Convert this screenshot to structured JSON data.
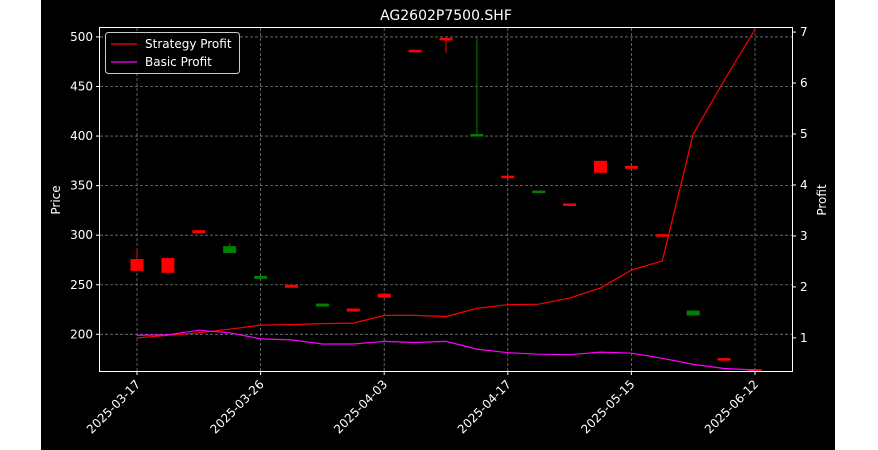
{
  "chart_data": {
    "type": "candlestick+line",
    "title": "AG2602P7500.SHF",
    "ylabel_left": "Price",
    "ylabel_right": "Profit",
    "ylim_left": [
      163,
      509
    ],
    "ylim_right": [
      0.35,
      7.08
    ],
    "yticks_left": [
      200,
      250,
      300,
      350,
      400,
      450,
      500
    ],
    "yticks_right": [
      1,
      2,
      3,
      4,
      5,
      6,
      7
    ],
    "xtick_labels": [
      "2025-03-17",
      "2025-03-26",
      "2025-04-03",
      "2025-04-17",
      "2025-05-15",
      "2025-06-12"
    ],
    "xtick_index": [
      0,
      4,
      8,
      12,
      16,
      20
    ],
    "grid": true,
    "legend_position": "upper-left",
    "colors": {
      "background": "#000000",
      "axes": "#ffffff",
      "grid": "#777777",
      "up": "#008000",
      "down": "#ff0000",
      "strategy": "#ff0000",
      "basic": "#ff00ff"
    },
    "candles": [
      {
        "open": 276,
        "close": 264,
        "high": 286,
        "low": 264
      },
      {
        "open": 277,
        "close": 262,
        "high": 278,
        "low": 262
      },
      {
        "open": 305,
        "close": 302,
        "high": 305,
        "low": 302
      },
      {
        "open": 282,
        "close": 289,
        "high": 292,
        "low": 282
      },
      {
        "open": 256,
        "close": 259,
        "high": 259,
        "low": 256
      },
      {
        "open": 250,
        "close": 247,
        "high": 250,
        "low": 247
      },
      {
        "open": 228,
        "close": 231,
        "high": 231,
        "low": 228
      },
      {
        "open": 226,
        "close": 223,
        "high": 226,
        "low": 223
      },
      {
        "open": 241,
        "close": 237,
        "high": 241,
        "low": 237
      },
      {
        "open": 487,
        "close": 486,
        "high": 487,
        "low": 486
      },
      {
        "open": 499,
        "close": 497,
        "high": 499,
        "low": 484
      },
      {
        "open": 400,
        "close": 402,
        "high": 500,
        "low": 400
      },
      {
        "open": 360,
        "close": 359,
        "high": 360,
        "low": 359
      },
      {
        "open": 343,
        "close": 345,
        "high": 345,
        "low": 343
      },
      {
        "open": 332,
        "close": 331,
        "high": 332,
        "low": 331
      },
      {
        "open": 375,
        "close": 363,
        "high": 375,
        "low": 363
      },
      {
        "open": 370,
        "close": 367,
        "high": 370,
        "low": 367
      },
      {
        "open": 301,
        "close": 300,
        "high": 301,
        "low": 300
      },
      {
        "open": 219,
        "close": 224,
        "high": 224,
        "low": 219
      },
      {
        "open": 176,
        "close": 175,
        "high": 176,
        "low": 175
      },
      {
        "open": 165,
        "close": 164,
        "high": 165,
        "low": 164
      }
    ],
    "series": [
      {
        "name": "Strategy Profit",
        "values": [
          1.0,
          1.05,
          1.1,
          1.17,
          1.25,
          1.26,
          1.28,
          1.29,
          1.44,
          1.44,
          1.42,
          1.58,
          1.65,
          1.66,
          1.78,
          1.98,
          2.33,
          2.51,
          5.0,
          6.05,
          7.05
        ]
      },
      {
        "name": "Basic Profit",
        "values": [
          1.05,
          1.06,
          1.15,
          1.1,
          0.98,
          0.96,
          0.88,
          0.88,
          0.93,
          0.91,
          0.93,
          0.78,
          0.71,
          0.68,
          0.67,
          0.72,
          0.7,
          0.6,
          0.48,
          0.4,
          0.37
        ]
      }
    ]
  }
}
